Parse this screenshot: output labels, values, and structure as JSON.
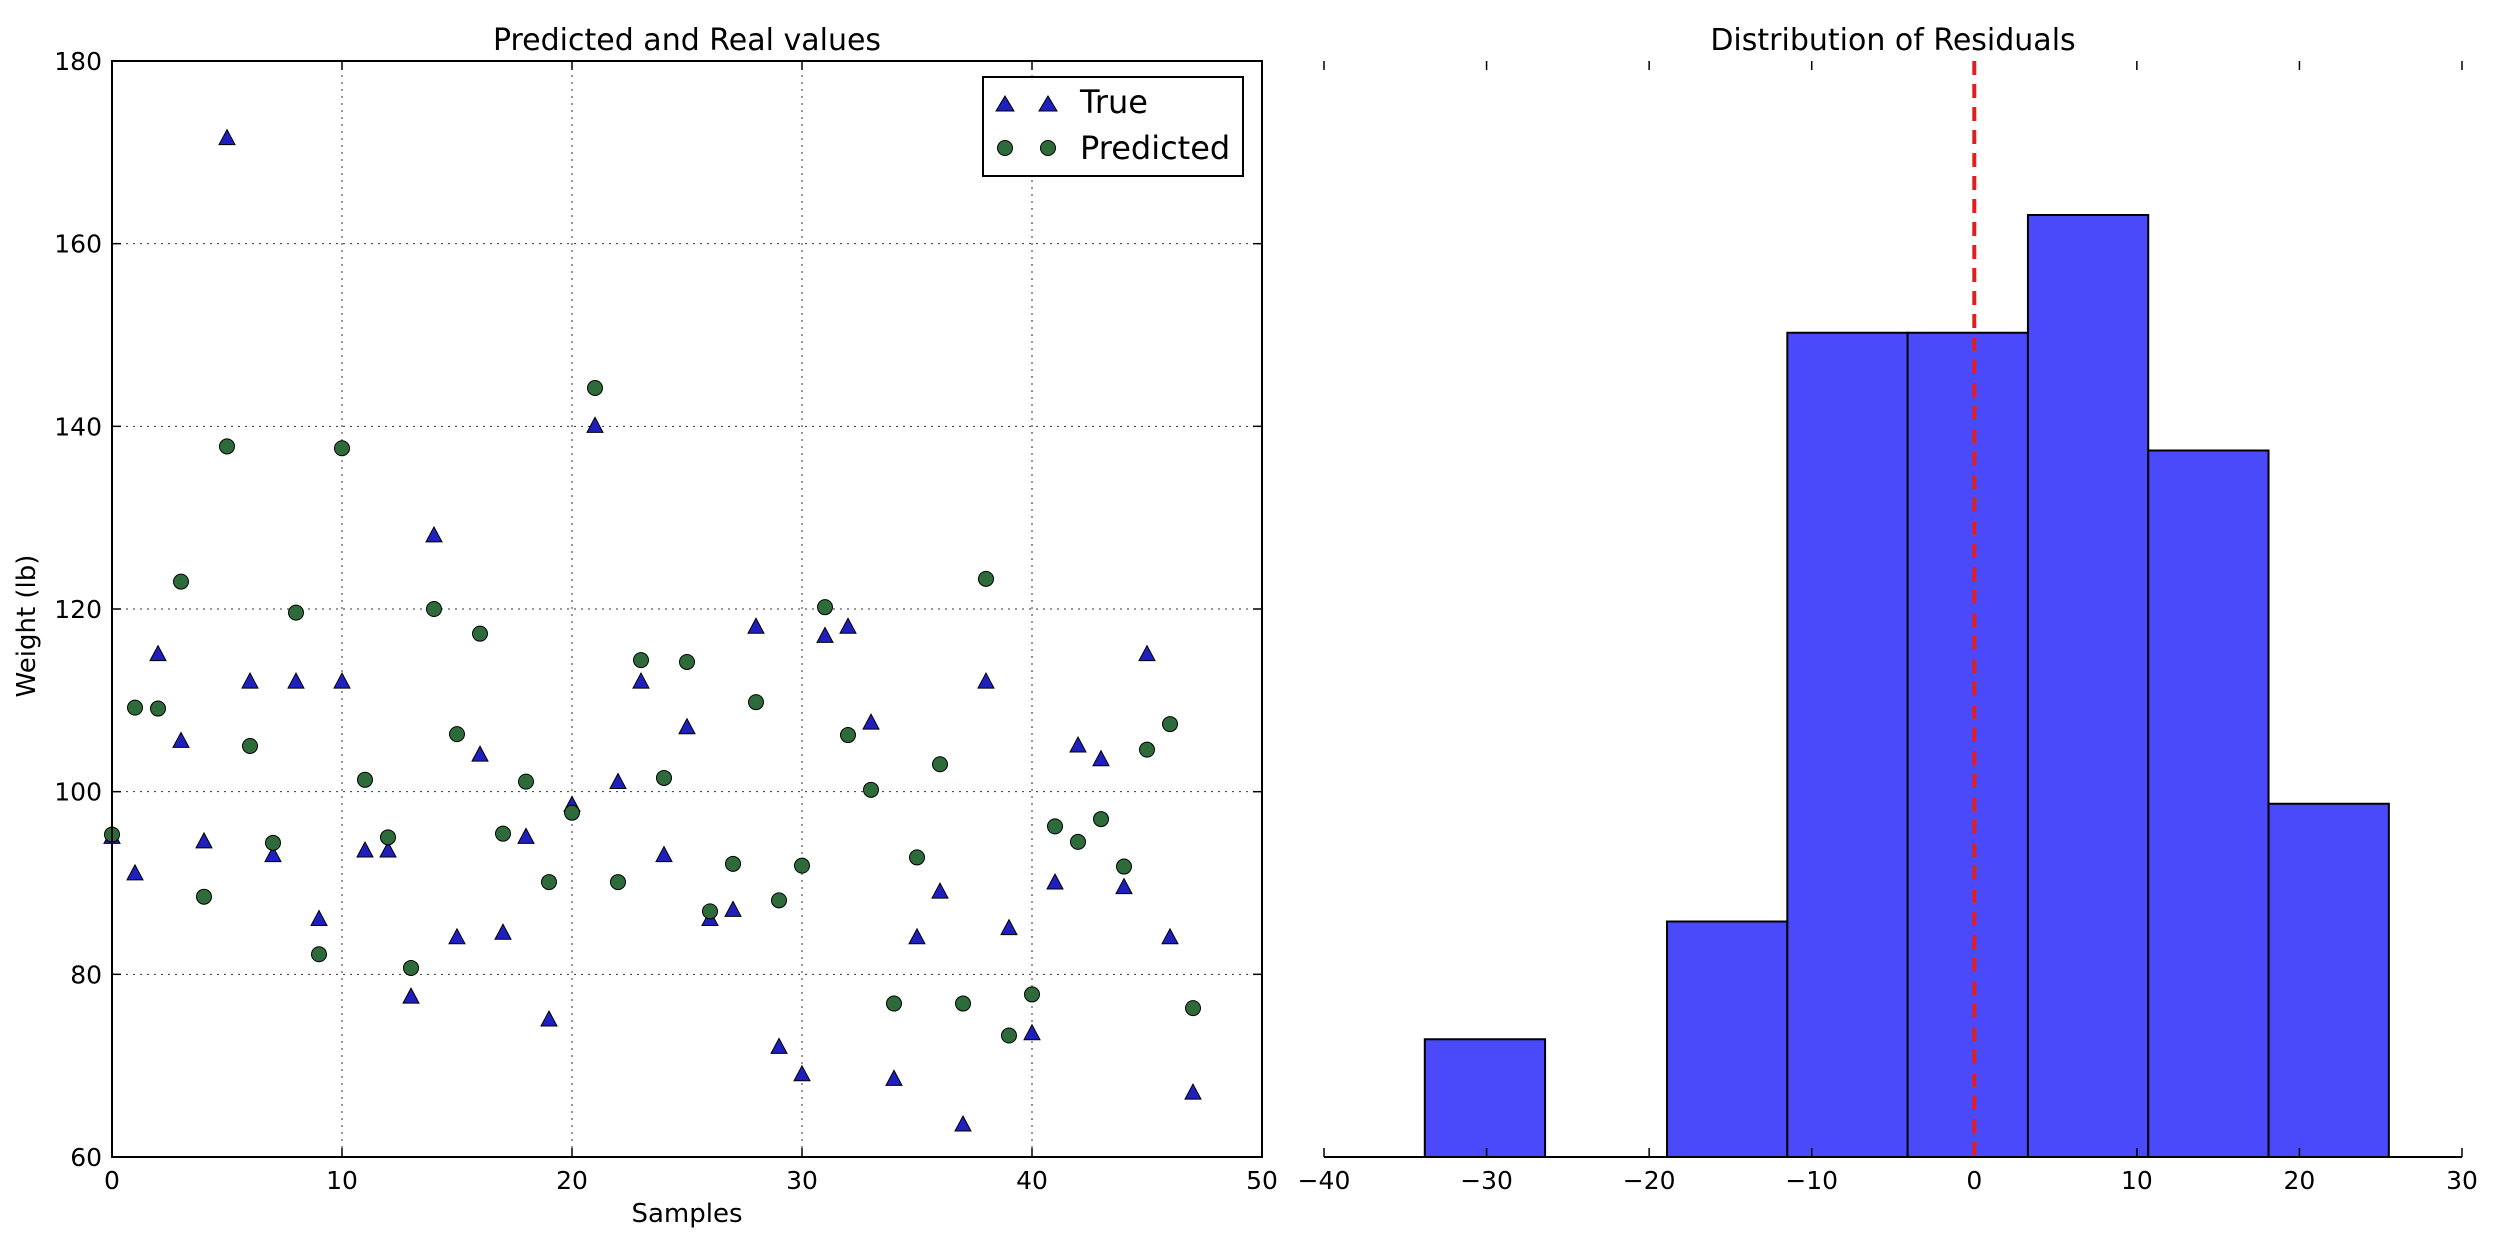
{
  "chart_data": [
    {
      "type": "scatter",
      "title": "Predicted and Real values",
      "xlabel": "Samples",
      "ylabel": "Weight (lb)",
      "xlim": [
        0,
        50
      ],
      "ylim": [
        60,
        180
      ],
      "xticks": [
        0,
        10,
        20,
        30,
        40,
        50
      ],
      "yticks": [
        60,
        80,
        100,
        120,
        140,
        160,
        180
      ],
      "grid": true,
      "legend_position": "top-right",
      "series": [
        {
          "name": "True",
          "marker": "triangle",
          "color": "#1f1fbf",
          "x": [
            0,
            1,
            2,
            3,
            4,
            5,
            6,
            7,
            8,
            9,
            10,
            11,
            12,
            13,
            14,
            15,
            16,
            17,
            18,
            19,
            20,
            21,
            22,
            23,
            24,
            25,
            26,
            27,
            28,
            29,
            30,
            31,
            32,
            33,
            34,
            35,
            36,
            37,
            38,
            39,
            40,
            41,
            42,
            43,
            44,
            45,
            46,
            47
          ],
          "y": [
            95,
            91,
            115,
            105.5,
            94.5,
            171.5,
            112,
            93,
            112,
            86,
            112,
            93.5,
            93.5,
            77.5,
            128,
            84,
            104,
            84.5,
            95,
            75,
            98.5,
            140,
            101,
            112,
            93,
            107,
            86,
            87,
            118,
            72,
            69,
            117,
            118,
            107.5,
            68.5,
            84,
            89,
            63.5,
            112,
            85,
            73.5,
            90,
            105,
            103.5,
            89.5,
            115,
            84,
            67
          ]
        },
        {
          "name": "Predicted",
          "marker": "circle",
          "color": "#2e6b3a",
          "x": [
            0,
            1,
            2,
            3,
            4,
            5,
            6,
            7,
            8,
            9,
            10,
            11,
            12,
            13,
            14,
            15,
            16,
            17,
            18,
            19,
            20,
            21,
            22,
            23,
            24,
            25,
            26,
            27,
            28,
            29,
            30,
            31,
            32,
            33,
            34,
            35,
            36,
            37,
            38,
            39,
            40,
            41,
            42,
            43,
            44,
            45,
            46,
            47
          ],
          "y": [
            95.3,
            109.2,
            109.1,
            123,
            88.5,
            137.8,
            105,
            94.4,
            119.6,
            82.2,
            137.6,
            101.3,
            95,
            80.7,
            120,
            106.3,
            117.3,
            95.4,
            101.1,
            90.1,
            97.7,
            144.2,
            90.1,
            114.4,
            101.5,
            114.2,
            86.9,
            92.1,
            109.8,
            88.1,
            91.9,
            120.2,
            106.2,
            100.2,
            76.8,
            92.8,
            103,
            76.8,
            123.3,
            73.3,
            77.8,
            96.2,
            94.5,
            97,
            91.8,
            104.6,
            107.4,
            76.3
          ]
        }
      ]
    },
    {
      "type": "bar",
      "subtype": "histogram",
      "title": "Distribution of Residuals",
      "xlim": [
        -40,
        30
      ],
      "xticks": [
        -40,
        -30,
        -20,
        -10,
        0,
        10,
        20,
        30
      ],
      "bin_edges": [
        -33.8,
        -26.4,
        -18.9,
        -11.5,
        -4.1,
        3.3,
        10.7,
        18.1,
        25.5
      ],
      "values": [
        1,
        0,
        2,
        7,
        7,
        8,
        6,
        3
      ],
      "bar_color": "#4a4afb",
      "vline": {
        "x": 0,
        "color": "#e02020",
        "style": "dashed"
      }
    }
  ]
}
